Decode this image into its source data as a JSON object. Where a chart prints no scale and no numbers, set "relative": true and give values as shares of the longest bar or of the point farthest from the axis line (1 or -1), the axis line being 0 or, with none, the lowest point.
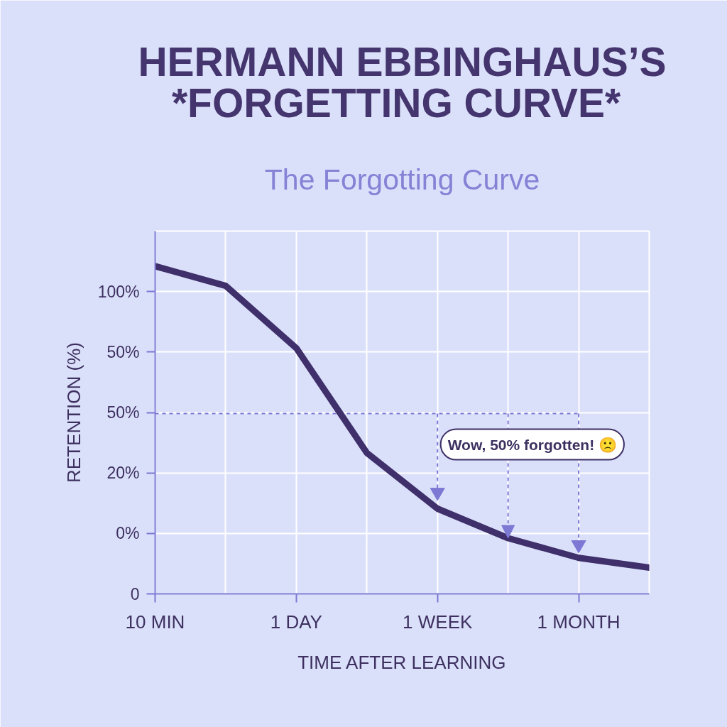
{
  "chart_data": {
    "type": "line",
    "title": "HERMANN EBBINGHAUS’S *FORGETTING CURVE*",
    "subtitle": "The Forgotting Curve",
    "xlabel": "TIME AFTER LEARNING",
    "ylabel": "RETENTION (%)",
    "categories": [
      "10 MIN",
      null,
      "1 DAY",
      null,
      "1 WEEK",
      null,
      "1 MONTH",
      null
    ],
    "relative": true,
    "series": [
      {
        "color": "#3f2f6b",
        "values": [
          1.0,
          0.94,
          0.75,
          0.43,
          0.26,
          0.17,
          0.11,
          0.08
        ]
      },
      {
        "type": "scatter",
        "marker": "triangle",
        "color": "#7c78d4",
        "values": [
          null,
          null,
          null,
          null,
          0.31,
          null,
          0.15,
          null
        ]
      }
    ],
    "grid": true,
    "line_style": "solid",
    "ref_lines": [
      {
        "axis": "y",
        "value": 0.55,
        "color": "#7c78d4",
        "line_style": "dashed",
        "label": "Wow, 50% forgotten! 🙁"
      },
      {
        "axis": "x",
        "value": "1 WEEK",
        "color": "#7c78d4",
        "line_style": "dashed"
      },
      {
        "axis": "x",
        "value": "1 MONTH",
        "color": "#7c78d4",
        "line_style": "dashed"
      }
    ],
    "annotations": [
      "100%",
      "50%",
      "50%",
      "20%",
      "0%",
      "0"
    ]
  }
}
